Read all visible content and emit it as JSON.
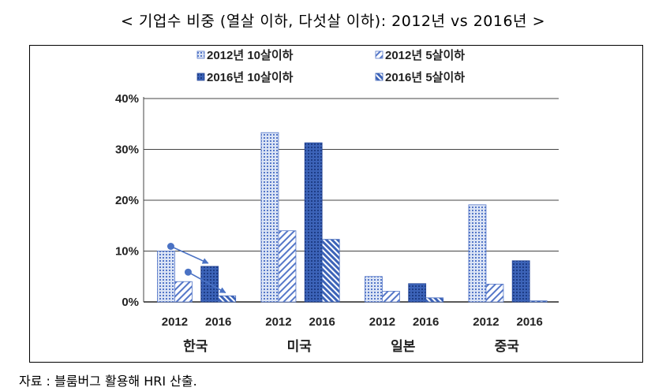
{
  "title": "< 기업수 비중 (열살 이하, 다섯살 이하): 2012년 vs 2016년 >",
  "source": "자료 : 블룸버그 활용해 HRI 산출.",
  "chart_data": {
    "type": "bar",
    "groups": [
      "한국",
      "미국",
      "일본",
      "중국"
    ],
    "years": [
      "2012",
      "2016"
    ],
    "series": [
      {
        "name": "2012년  10살이하",
        "year": "2012",
        "pattern": "dots-light",
        "color": "#4a72c4",
        "values": [
          10.0,
          33.3,
          5.0,
          19.1
        ]
      },
      {
        "name": "2012년  5살이하",
        "year": "2012",
        "pattern": "hatch-light",
        "color": "#4a72c4",
        "values": [
          4.0,
          14.0,
          2.1,
          3.5
        ]
      },
      {
        "name": "2016년  10살이하",
        "year": "2016",
        "pattern": "dots-dark",
        "color": "#3a5fb0",
        "values": [
          7.0,
          31.3,
          3.6,
          8.1
        ]
      },
      {
        "name": "2016년  5살이하",
        "year": "2016",
        "pattern": "hatch-dark",
        "color": "#3a5fb0",
        "values": [
          1.2,
          12.3,
          0.8,
          0.2
        ]
      }
    ],
    "yaxis": {
      "min": 0,
      "max": 40,
      "ticks": [
        0,
        10,
        20,
        30,
        40
      ],
      "format": "percent"
    },
    "grid": true,
    "legend_position": "top",
    "annotations": [
      {
        "type": "arrow",
        "group": "한국",
        "from_series": "2012년  10살이하",
        "to_series": "2016년  10살이하",
        "color": "#4a72c4"
      },
      {
        "type": "arrow",
        "group": "한국",
        "from_series": "2012년  5살이하",
        "to_series": "2016년  5살이하",
        "color": "#4a72c4"
      }
    ]
  }
}
